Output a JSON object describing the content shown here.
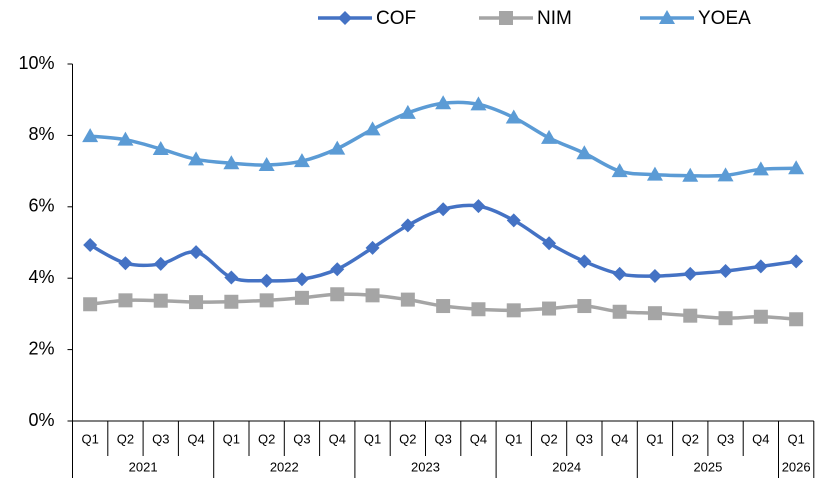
{
  "chart_data": {
    "type": "line",
    "categories": [
      "Q1",
      "Q2",
      "Q3",
      "Q4",
      "Q1",
      "Q2",
      "Q3",
      "Q4",
      "Q1",
      "Q2",
      "Q3",
      "Q4",
      "Q1",
      "Q2",
      "Q3",
      "Q4",
      "Q1",
      "Q2",
      "Q3",
      "Q4",
      "Q1"
    ],
    "x_groups": [
      "2021",
      "2022",
      "2023",
      "2024",
      "2025",
      "2026"
    ],
    "series": [
      {
        "name": "COF",
        "color": "#4472c4",
        "marker": "diamond",
        "values": [
          4.93,
          4.42,
          4.4,
          4.73,
          4.02,
          3.93,
          3.97,
          4.25,
          4.85,
          5.48,
          5.93,
          6.02,
          5.62,
          4.98,
          4.47,
          4.12,
          4.06,
          4.12,
          4.2,
          4.33,
          4.47
        ]
      },
      {
        "name": "NIM",
        "color": "#a5a5a5",
        "marker": "square",
        "values": [
          3.27,
          3.38,
          3.37,
          3.33,
          3.34,
          3.38,
          3.45,
          3.55,
          3.52,
          3.4,
          3.22,
          3.13,
          3.1,
          3.15,
          3.22,
          3.06,
          3.02,
          2.95,
          2.88,
          2.92,
          2.85
        ]
      },
      {
        "name": "YOEA",
        "color": "#5b9bd5",
        "marker": "triangle",
        "values": [
          7.98,
          7.88,
          7.62,
          7.33,
          7.22,
          7.17,
          7.28,
          7.63,
          8.17,
          8.63,
          8.9,
          8.87,
          8.5,
          7.93,
          7.5,
          7.0,
          6.9,
          6.87,
          6.88,
          7.05,
          7.08
        ]
      }
    ],
    "ylim": [
      0,
      10
    ],
    "yticks": [
      {
        "value": 0,
        "label": "0%"
      },
      {
        "value": 2,
        "label": "2%"
      },
      {
        "value": 4,
        "label": "4%"
      },
      {
        "value": 6,
        "label": "6%"
      },
      {
        "value": 8,
        "label": "8%"
      },
      {
        "value": 10,
        "label": "10%"
      }
    ],
    "legend": "top"
  }
}
